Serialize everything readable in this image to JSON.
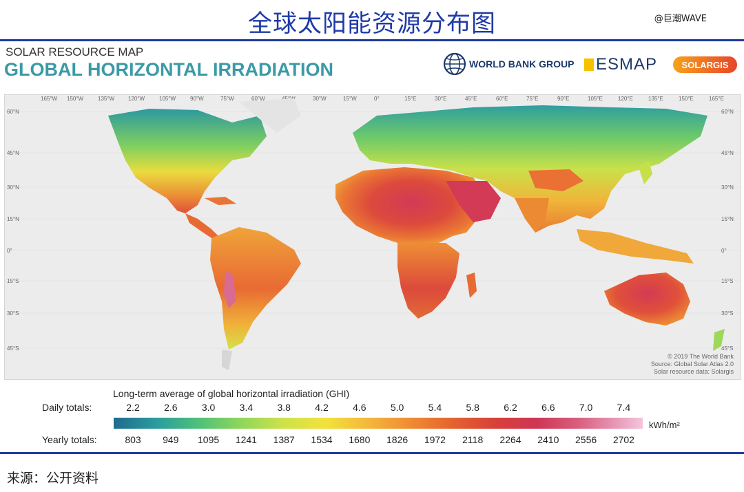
{
  "title": "全球太阳能资源分布图",
  "watermark": "@巨潮WAVE",
  "map_header": {
    "subtitle": "SOLAR RESOURCE MAP",
    "title": "GLOBAL HORIZONTAL IRRADIATION"
  },
  "logos": {
    "world_bank": "WORLD BANK GROUP",
    "esmap": "ESMAP",
    "solargis": "SOLARGIS"
  },
  "longitude_labels": [
    "165°W",
    "150°W",
    "135°W",
    "120°W",
    "105°W",
    "90°W",
    "75°W",
    "60°W",
    "45°W",
    "30°W",
    "15°W",
    "0°",
    "15°E",
    "30°E",
    "45°E",
    "60°E",
    "75°E",
    "90°E",
    "105°E",
    "120°E",
    "135°E",
    "150°E",
    "165°E"
  ],
  "latitude_labels": [
    "60°N",
    "45°N",
    "30°N",
    "15°N",
    "0°",
    "15°S",
    "30°S",
    "45°S"
  ],
  "attribution": [
    "© 2019 The World Bank",
    "Source: Global Solar Atlas 2.0",
    "Solar resource data: Solargis"
  ],
  "legend": {
    "title": "Long-term average of global horizontal irradiation (GHI)",
    "daily_label": "Daily totals:",
    "yearly_label": "Yearly totals:",
    "daily_values": [
      "2.2",
      "2.6",
      "3.0",
      "3.4",
      "3.8",
      "4.2",
      "4.6",
      "5.0",
      "5.4",
      "5.8",
      "6.2",
      "6.6",
      "7.0",
      "7.4"
    ],
    "yearly_values": [
      "803",
      "949",
      "1095",
      "1241",
      "1387",
      "1534",
      "1680",
      "1826",
      "1972",
      "2118",
      "2264",
      "2410",
      "2556",
      "2702"
    ],
    "unit": "kWh/m²",
    "colors": [
      "#1f6b8c",
      "#2a9c9e",
      "#4ec07a",
      "#8fd65a",
      "#cde24a",
      "#f2e23c",
      "#f4b83a",
      "#ef8c34",
      "#e5632e",
      "#d8403a",
      "#cf3555",
      "#d9607f",
      "#e690b0",
      "#f2c6dc"
    ]
  },
  "source": "来源：公开资料"
}
